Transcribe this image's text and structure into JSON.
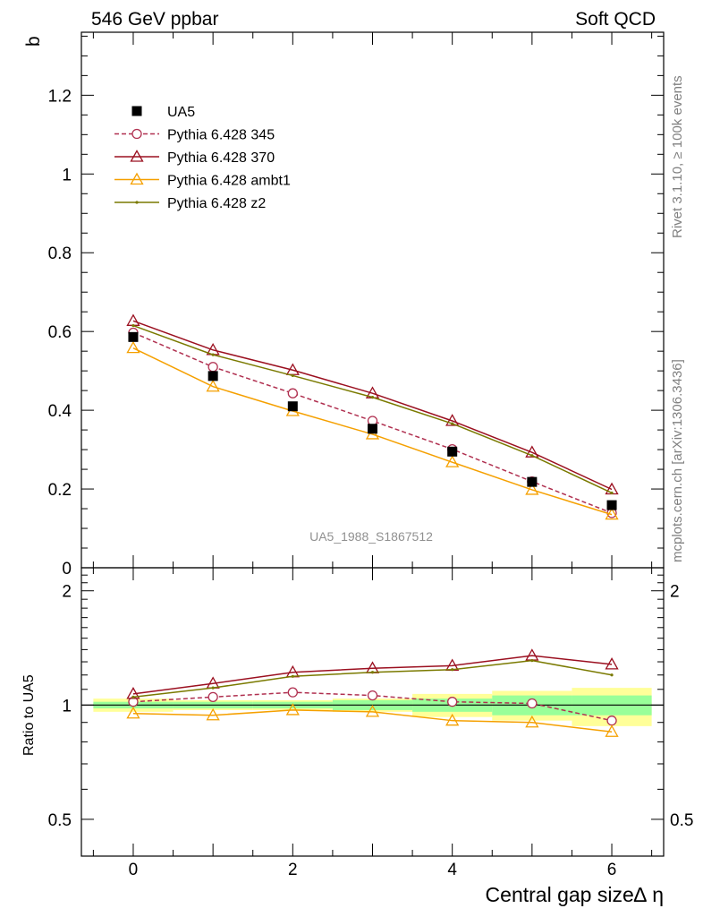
{
  "header": {
    "left_title": "546 GeV ppbar",
    "right_title": "Soft QCD"
  },
  "side": {
    "rivet_text": "Rivet 3.1.10, ≥ 100k events",
    "mcplots_text": "mcplots.cern.ch [arXiv:1306.3436]"
  },
  "main_panel": {
    "ylabel": "b",
    "watermark": "UA5_1988_S1867512",
    "yticks": [
      {
        "v": 0,
        "label": "0"
      },
      {
        "v": 0.2,
        "label": "0.2"
      },
      {
        "v": 0.4,
        "label": "0.4"
      },
      {
        "v": 0.6,
        "label": "0.6"
      },
      {
        "v": 0.8,
        "label": "0.8"
      },
      {
        "v": 1.0,
        "label": "1"
      },
      {
        "v": 1.2,
        "label": "1.2"
      }
    ]
  },
  "ratio_panel": {
    "ylabel": "Ratio to UA5",
    "yticks": [
      {
        "v": 0.5,
        "label": "0.5"
      },
      {
        "v": 1,
        "label": "1"
      },
      {
        "v": 2,
        "label": "2"
      }
    ],
    "ytick_labels_right": [
      {
        "v": 0.5,
        "label": "0.5"
      },
      {
        "v": 2,
        "label": "2"
      }
    ]
  },
  "xaxis": {
    "label": "Central gap size∆ η",
    "ticks": [
      {
        "v": 0,
        "label": "0"
      },
      {
        "v": 2,
        "label": "2"
      },
      {
        "v": 4,
        "label": "4"
      },
      {
        "v": 6,
        "label": "6"
      }
    ]
  },
  "chart_data": {
    "type": "line",
    "x": [
      0,
      1,
      2,
      3,
      4,
      5,
      6
    ],
    "xlim": [
      -0.65,
      6.65
    ],
    "ylim": [
      0,
      1.36
    ],
    "ratio_ylim": [
      0.4,
      2.3
    ],
    "ratio_scale": "log",
    "ratio_bands": {
      "yellow": [
        [
          0.96,
          1.04
        ],
        [
          0.97,
          1.03
        ],
        [
          0.97,
          1.03
        ],
        [
          0.96,
          1.04
        ],
        [
          0.93,
          1.07
        ],
        [
          0.91,
          1.09
        ],
        [
          0.88,
          1.11
        ]
      ],
      "green": [
        [
          0.98,
          1.02
        ],
        [
          0.98,
          1.02
        ],
        [
          0.98,
          1.02
        ],
        [
          0.97,
          1.03
        ],
        [
          0.96,
          1.04
        ],
        [
          0.94,
          1.06
        ],
        [
          0.94,
          1.06
        ]
      ]
    },
    "series": [
      {
        "name": "UA5",
        "color": "#000000",
        "marker": "square",
        "dashed": false,
        "line": false,
        "values": [
          0.586,
          0.487,
          0.41,
          0.353,
          0.295,
          0.218,
          0.159
        ],
        "ratio": [
          1,
          1,
          1,
          1,
          1,
          1,
          1
        ]
      },
      {
        "name": "Pythia 6.428 345",
        "color": "#b03050",
        "marker": "circle",
        "dashed": true,
        "line": true,
        "values": [
          0.597,
          0.51,
          0.443,
          0.373,
          0.301,
          0.219,
          0.139
        ],
        "ratio": [
          1.02,
          1.05,
          1.08,
          1.06,
          1.02,
          1.01,
          0.91
        ]
      },
      {
        "name": "Pythia 6.428 370",
        "color": "#9b1020",
        "marker": "triangle",
        "dashed": false,
        "line": true,
        "values": [
          0.627,
          0.553,
          0.502,
          0.443,
          0.373,
          0.293,
          0.199
        ],
        "ratio": [
          1.07,
          1.14,
          1.22,
          1.25,
          1.27,
          1.35,
          1.28
        ]
      },
      {
        "name": "Pythia 6.428 ambt1",
        "color": "#f5a000",
        "marker": "triangle",
        "dashed": false,
        "line": true,
        "values": [
          0.558,
          0.46,
          0.398,
          0.339,
          0.268,
          0.198,
          0.135
        ],
        "ratio": [
          0.95,
          0.94,
          0.97,
          0.96,
          0.91,
          0.9,
          0.85
        ]
      },
      {
        "name": "Pythia 6.428 z2",
        "color": "#7a7a00",
        "marker": "dot",
        "dashed": false,
        "line": true,
        "values": [
          0.615,
          0.541,
          0.488,
          0.433,
          0.366,
          0.285,
          0.19
        ],
        "ratio": [
          1.05,
          1.11,
          1.19,
          1.22,
          1.24,
          1.31,
          1.2
        ]
      }
    ]
  }
}
